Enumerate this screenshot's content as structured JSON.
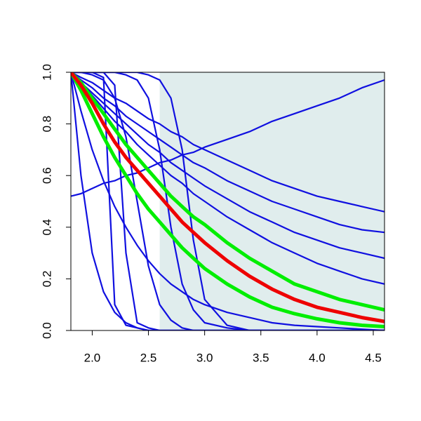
{
  "chart_data": {
    "type": "line",
    "xlim": [
      1.81,
      4.6
    ],
    "ylim": [
      0,
      1
    ],
    "xticks": [
      {
        "value": 2,
        "label": "2.0"
      },
      2.5,
      {
        "value": 3,
        "label": "3.0"
      },
      3.5,
      {
        "value": 4,
        "label": "4.0"
      },
      4.5
    ],
    "yticks": [
      {
        "value": 0,
        "label": "0.0"
      },
      0.2,
      0.4,
      0.6,
      0.8,
      {
        "value": 1,
        "label": "1.0"
      }
    ],
    "shaded_band": {
      "xlim": [
        2.6,
        4.6
      ],
      "color": "#e0eded"
    },
    "x": [
      1.81,
      1.9,
      2.0,
      2.1,
      2.2,
      2.3,
      2.4,
      2.5,
      2.6,
      2.7,
      2.8,
      2.9,
      3.0,
      3.2,
      3.4,
      3.6,
      3.8,
      4.0,
      4.2,
      4.4,
      4.6
    ],
    "series": [
      {
        "color": "#1010e0",
        "values": [
          0.52,
          0.53,
          0.55,
          0.57,
          0.58,
          0.6,
          0.61,
          0.63,
          0.65,
          0.66,
          0.68,
          0.69,
          0.71,
          0.74,
          0.77,
          0.81,
          0.84,
          0.87,
          0.9,
          0.94,
          0.97
        ]
      },
      {
        "color": "#1010e0",
        "values": [
          1,
          0.98,
          0.96,
          0.93,
          0.9,
          0.88,
          0.85,
          0.82,
          0.8,
          0.77,
          0.75,
          0.72,
          0.7,
          0.66,
          0.62,
          0.58,
          0.55,
          0.52,
          0.5,
          0.48,
          0.46
        ]
      },
      {
        "color": "#1010e0",
        "values": [
          1,
          0.97,
          0.94,
          0.9,
          0.87,
          0.83,
          0.8,
          0.77,
          0.74,
          0.71,
          0.68,
          0.65,
          0.63,
          0.58,
          0.54,
          0.5,
          0.47,
          0.44,
          0.41,
          0.39,
          0.38
        ]
      },
      {
        "color": "#1010e0",
        "values": [
          1,
          0.96,
          0.92,
          0.88,
          0.84,
          0.8,
          0.76,
          0.72,
          0.69,
          0.65,
          0.62,
          0.59,
          0.56,
          0.51,
          0.46,
          0.42,
          0.38,
          0.35,
          0.32,
          0.3,
          0.28
        ]
      },
      {
        "color": "#1010e0",
        "values": [
          1,
          0.96,
          0.91,
          0.86,
          0.81,
          0.77,
          0.72,
          0.68,
          0.64,
          0.6,
          0.57,
          0.53,
          0.5,
          0.44,
          0.39,
          0.34,
          0.3,
          0.26,
          0.23,
          0.2,
          0.18
        ]
      },
      {
        "color": "#1010e0",
        "values": [
          1,
          1,
          1,
          0.98,
          0.1,
          0.02,
          0.01,
          0,
          0,
          0,
          0,
          0,
          0,
          0,
          0,
          0,
          0,
          0,
          0,
          0,
          0
        ]
      },
      {
        "color": "#1010e0",
        "values": [
          1,
          1,
          1,
          1,
          1,
          0.99,
          0.97,
          0.9,
          0.7,
          0.4,
          0.18,
          0.08,
          0.03,
          0.01,
          0,
          0,
          0,
          0,
          0,
          0,
          0
        ]
      },
      {
        "color": "#1010e0",
        "values": [
          1,
          1,
          1,
          1,
          1,
          1,
          1,
          0.99,
          0.97,
          0.9,
          0.7,
          0.35,
          0.12,
          0.02,
          0,
          0,
          0,
          0,
          0,
          0,
          0
        ]
      },
      {
        "color": "#1010e0",
        "values": [
          1,
          0.6,
          0.3,
          0.15,
          0.07,
          0.03,
          0.01,
          0,
          0,
          0,
          0,
          0,
          0,
          0,
          0,
          0,
          0,
          0,
          0,
          0,
          0
        ]
      },
      {
        "color": "#1010e0",
        "values": [
          1,
          1,
          0.99,
          0.97,
          0.9,
          0.75,
          0.5,
          0.25,
          0.1,
          0.04,
          0.01,
          0,
          0,
          0,
          0,
          0,
          0,
          0,
          0,
          0,
          0
        ]
      },
      {
        "color": "#1010e0",
        "values": [
          1,
          0.85,
          0.7,
          0.58,
          0.48,
          0.4,
          0.33,
          0.27,
          0.22,
          0.18,
          0.15,
          0.12,
          0.1,
          0.07,
          0.05,
          0.03,
          0.02,
          0.015,
          0.01,
          0.005,
          0
        ]
      },
      {
        "color": "#1010e0",
        "values": [
          1,
          1,
          1,
          1,
          0.95,
          0.3,
          0.03,
          0.01,
          0,
          0,
          0,
          0,
          0,
          0,
          0,
          0,
          0,
          0,
          0,
          0,
          0
        ]
      },
      {
        "color": "#00ee00",
        "values": [
          1,
          0.96,
          0.9,
          0.84,
          0.78,
          0.72,
          0.67,
          0.62,
          0.57,
          0.52,
          0.48,
          0.44,
          0.41,
          0.34,
          0.28,
          0.23,
          0.18,
          0.15,
          0.12,
          0.1,
          0.08
        ]
      },
      {
        "color": "#00ee00",
        "values": [
          1,
          0.93,
          0.84,
          0.75,
          0.67,
          0.6,
          0.53,
          0.47,
          0.42,
          0.37,
          0.32,
          0.28,
          0.24,
          0.18,
          0.13,
          0.09,
          0.065,
          0.045,
          0.03,
          0.02,
          0.015
        ]
      },
      {
        "color": "#ee0000",
        "values": [
          1,
          0.95,
          0.88,
          0.8,
          0.73,
          0.67,
          0.62,
          0.57,
          0.52,
          0.47,
          0.42,
          0.38,
          0.34,
          0.27,
          0.21,
          0.16,
          0.12,
          0.09,
          0.07,
          0.05,
          0.035
        ]
      }
    ]
  }
}
